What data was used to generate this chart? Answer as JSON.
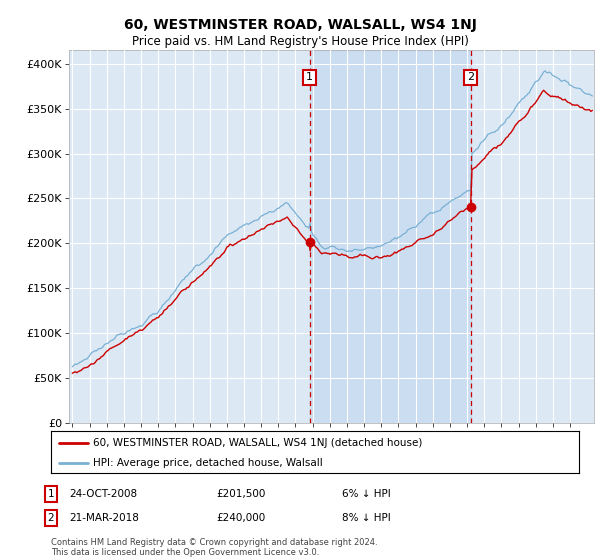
{
  "title": "60, WESTMINSTER ROAD, WALSALL, WS4 1NJ",
  "subtitle": "Price paid vs. HM Land Registry's House Price Index (HPI)",
  "title_fontsize": 10,
  "subtitle_fontsize": 8.5,
  "background_color": "#ffffff",
  "plot_bg_color": "#dce9f5",
  "shade_color": "#c5d8ee",
  "grid_color": "#ffffff",
  "ylabel_ticks": [
    "£0",
    "£50K",
    "£100K",
    "£150K",
    "£200K",
    "£250K",
    "£300K",
    "£350K",
    "£400K"
  ],
  "ytick_values": [
    0,
    50000,
    100000,
    150000,
    200000,
    250000,
    300000,
    350000,
    400000
  ],
  "ylim": [
    0,
    415000
  ],
  "xlim_start": 1994.8,
  "xlim_end": 2025.4,
  "sale1_date": 2008.82,
  "sale1_price": 201500,
  "sale2_date": 2018.22,
  "sale2_price": 240000,
  "legend_property_label": "60, WESTMINSTER ROAD, WALSALL, WS4 1NJ (detached house)",
  "legend_hpi_label": "HPI: Average price, detached house, Walsall",
  "footer": "Contains HM Land Registry data © Crown copyright and database right 2024.\nThis data is licensed under the Open Government Licence v3.0.",
  "property_color": "#cc0000",
  "hpi_color": "#7ab0d4",
  "vline_color": "#cc0000",
  "x_ticks": [
    1995,
    1996,
    1997,
    1998,
    1999,
    2000,
    2001,
    2002,
    2003,
    2004,
    2005,
    2006,
    2007,
    2008,
    2009,
    2010,
    2011,
    2012,
    2013,
    2014,
    2015,
    2016,
    2017,
    2018,
    2019,
    2020,
    2021,
    2022,
    2023,
    2024
  ]
}
